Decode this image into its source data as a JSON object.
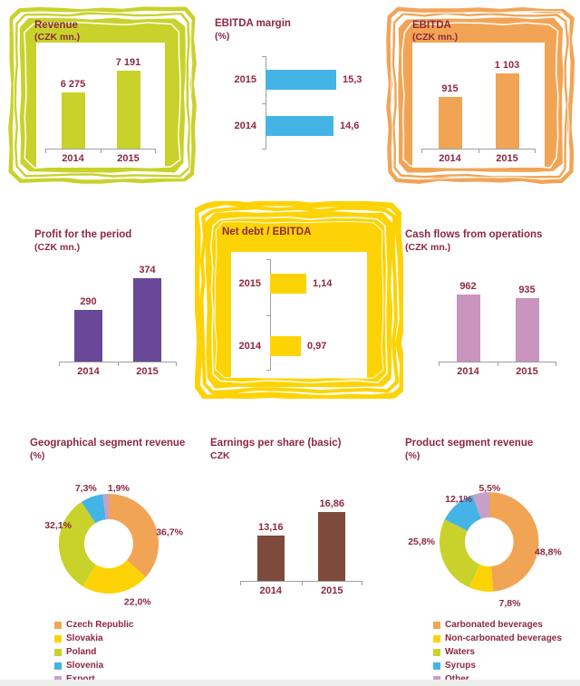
{
  "page": {
    "background": "#ffffff",
    "text_color": "#8e2840",
    "axis_color": "#9f9f9f",
    "footer_bar_color": "#ededed"
  },
  "chart_data": [
    {
      "id": "revenue",
      "type": "bar",
      "title": "Revenue",
      "subtitle": "(CZK mn.)",
      "categories": [
        "2014",
        "2015"
      ],
      "values": [
        6275,
        7191
      ],
      "value_labels": [
        "6 275",
        "7 191"
      ],
      "bar_color": "#c8d22b",
      "frame_color": "#c8d22b",
      "framed": true,
      "ylim": [
        4000,
        7400
      ],
      "grid": false
    },
    {
      "id": "ebitda-margin",
      "type": "bar-horizontal",
      "title": "EBITDA margin",
      "subtitle": "(%)",
      "categories": [
        "2015",
        "2014"
      ],
      "values": [
        15.3,
        14.6
      ],
      "value_labels": [
        "15,3",
        "14,6"
      ],
      "bar_color": "#44b4e7",
      "framed": false,
      "xlim": [
        0,
        17.2
      ],
      "grid": false
    },
    {
      "id": "ebitda",
      "type": "bar",
      "title": "EBITDA",
      "subtitle": "(CZK mn.)",
      "categories": [
        "2014",
        "2015"
      ],
      "values": [
        915,
        1103
      ],
      "value_labels": [
        "915",
        "1 103"
      ],
      "bar_color": "#f2a455",
      "frame_color": "#f2a455",
      "framed": true,
      "ylim": [
        500,
        1150
      ],
      "grid": false
    },
    {
      "id": "profit-for-the-period",
      "type": "bar",
      "title": "Profit for the period",
      "subtitle": "(CZK mn.)",
      "categories": [
        "2014",
        "2015"
      ],
      "values": [
        290,
        374
      ],
      "value_labels": [
        "290",
        "374"
      ],
      "bar_color": "#684897",
      "framed": false,
      "ylim": [
        150,
        380
      ],
      "grid": false
    },
    {
      "id": "net-debt-ebitda",
      "type": "bar-horizontal",
      "title": "Net debt / EBITDA",
      "subtitle": "",
      "categories": [
        "2015",
        "2014"
      ],
      "values": [
        1.14,
        0.97
      ],
      "value_labels": [
        "1,14",
        "0,97"
      ],
      "bar_color": "#fdd306",
      "frame_color": "#fdd306",
      "framed": true,
      "xlim": [
        0,
        1.9
      ],
      "grid": false
    },
    {
      "id": "cash-flows-from-operations",
      "type": "bar",
      "title": "Cash flows from operations",
      "subtitle": "(CZK mn.)",
      "categories": [
        "2014",
        "2015"
      ],
      "values": [
        962,
        935
      ],
      "value_labels": [
        "962",
        "935"
      ],
      "bar_color": "#c994be",
      "framed": false,
      "ylim": [
        500,
        1000
      ],
      "grid": false
    },
    {
      "id": "geographical-segment-revenue",
      "type": "donut",
      "title": "Geographical segment revenue",
      "subtitle": "(%)",
      "legend_position": "bottom-left",
      "slices": [
        {
          "label": "Czech Republic",
          "value": 36.7,
          "pct_label": "36,7%",
          "color": "#f2a455"
        },
        {
          "label": "Slovakia",
          "value": 22.0,
          "pct_label": "22,0%",
          "color": "#fdd306"
        },
        {
          "label": "Poland",
          "value": 32.1,
          "pct_label": "32,1%",
          "color": "#c8d22b"
        },
        {
          "label": "Slovenia",
          "value": 7.3,
          "pct_label": "7,3%",
          "color": "#44b4e7"
        },
        {
          "label": "Export",
          "value": 1.9,
          "pct_label": "1,9%",
          "color": "#c89fcb"
        }
      ]
    },
    {
      "id": "earnings-per-share-basic",
      "type": "bar",
      "title": "Earnings per share (basic)",
      "subtitle": "CZK",
      "categories": [
        "2014",
        "2015"
      ],
      "values": [
        13.16,
        16.86
      ],
      "value_labels": [
        "13,16",
        "16,86"
      ],
      "bar_color": "#7e4a3b",
      "framed": false,
      "ylim": [
        6,
        17.5
      ],
      "grid": false
    },
    {
      "id": "product-segment-revenue",
      "type": "donut",
      "title": "Product segment revenue",
      "subtitle": "(%)",
      "legend_position": "bottom-left",
      "slices": [
        {
          "label": "Carbonated beverages",
          "value": 48.8,
          "pct_label": "48,8%",
          "color": "#f2a455"
        },
        {
          "label": "Non-carbonated beverages",
          "value": 7.8,
          "pct_label": "7,8%",
          "color": "#fdd306"
        },
        {
          "label": "Waters",
          "value": 25.8,
          "pct_label": "25,8%",
          "color": "#c8d22b"
        },
        {
          "label": "Syrups",
          "value": 12.1,
          "pct_label": "12,1%",
          "color": "#44b4e7"
        },
        {
          "label": "Other",
          "value": 5.5,
          "pct_label": "5,5%",
          "color": "#c89fcb"
        }
      ]
    }
  ]
}
